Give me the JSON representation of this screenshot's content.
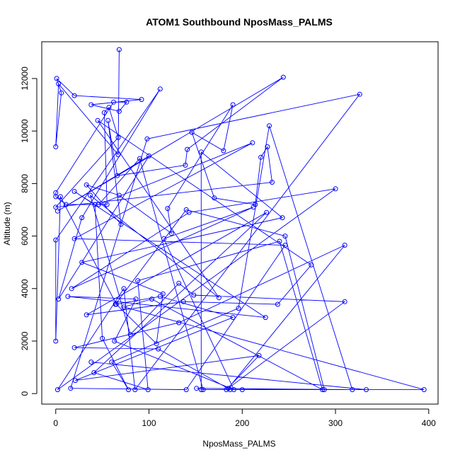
{
  "chart_data": {
    "type": "line",
    "title": "ATOM1 Southbound NposMass_PALMS",
    "xlabel": "NposMass_PALMS",
    "ylabel": "Altitude (m)",
    "xlim": [
      -15,
      410
    ],
    "ylim": [
      -400,
      13400
    ],
    "xticks": [
      "0",
      "100",
      "200",
      "300",
      "400"
    ],
    "yticks": [
      "0",
      "2000",
      "4000",
      "6000",
      "8000",
      "10000",
      "12000"
    ],
    "grid": false,
    "legend": "none",
    "markers": "open circles connected by lines",
    "color": "#0000ff",
    "series": [
      {
        "x": [
          68,
          67,
          3,
          0,
          6,
          1,
          20,
          92,
          38,
          68,
          76,
          62,
          0,
          0,
          11,
          55,
          52,
          57,
          67,
          0,
          232,
          227,
          220,
          214,
          170,
          146,
          180,
          190,
          120,
          124,
          68,
          33,
          70,
          56,
          66,
          139,
          141,
          244,
          2,
          100,
          3,
          28,
          112,
          0,
          0,
          5,
          65,
          108,
          115,
          28,
          243,
          156,
          156,
          200,
          158,
          90,
          46,
          211,
          20,
          246,
          140,
          16,
          98,
          326,
          85,
          73,
          2,
          300,
          143,
          17,
          212,
          116,
          191,
          63,
          86,
          13,
          225,
          20,
          42,
          50,
          78,
          60,
          196,
          229,
          318,
          151,
          288,
          246,
          140,
          64,
          112,
          190,
          21,
          218,
          183,
          395,
          73,
          103,
          286,
          240,
          88,
          99,
          41,
          226,
          33,
          137,
          238,
          274,
          45,
          175,
          37,
          80,
          132,
          148,
          310,
          185,
          310,
          132,
          20,
          110,
          187,
          333,
          38
        ],
        "y": [
          13100,
          9100,
          11800,
          9400,
          11450,
          12000,
          11350,
          11200,
          11000,
          10750,
          11100,
          11100,
          7650,
          7500,
          7200,
          7200,
          10700,
          10900,
          9750,
          7100,
          8050,
          9400,
          9000,
          7200,
          7450,
          9950,
          9250,
          11000,
          7050,
          6100,
          7550,
          7950,
          6450,
          10400,
          8300,
          8700,
          9300,
          12050,
          6950,
          9050,
          3600,
          6700,
          11600,
          5850,
          2000,
          7500,
          3400,
          1900,
          3800,
          5000,
          6700,
          9200,
          150,
          150,
          150,
          8950,
          7200,
          9550,
          5900,
          5650,
          150,
          200,
          9700,
          11400,
          150,
          4000,
          150,
          7800,
          6900,
          4000,
          7100,
          5900,
          150,
          2000,
          3600,
          3700,
          2900,
          7700,
          7200,
          2100,
          150,
          1200,
          3250,
          10200,
          150,
          200,
          150,
          6000,
          7000,
          3400,
          3700,
          2900,
          500,
          1450,
          150,
          150,
          3300,
          3600,
          150,
          5800,
          4300,
          150,
          800,
          6900,
          3000,
          3500,
          3400,
          4900,
          10400,
          3650,
          7550,
          2250,
          4200,
          3750,
          3500,
          200,
          5650,
          2700,
          1750,
          1700,
          150,
          150,
          1200
        ]
      }
    ]
  }
}
